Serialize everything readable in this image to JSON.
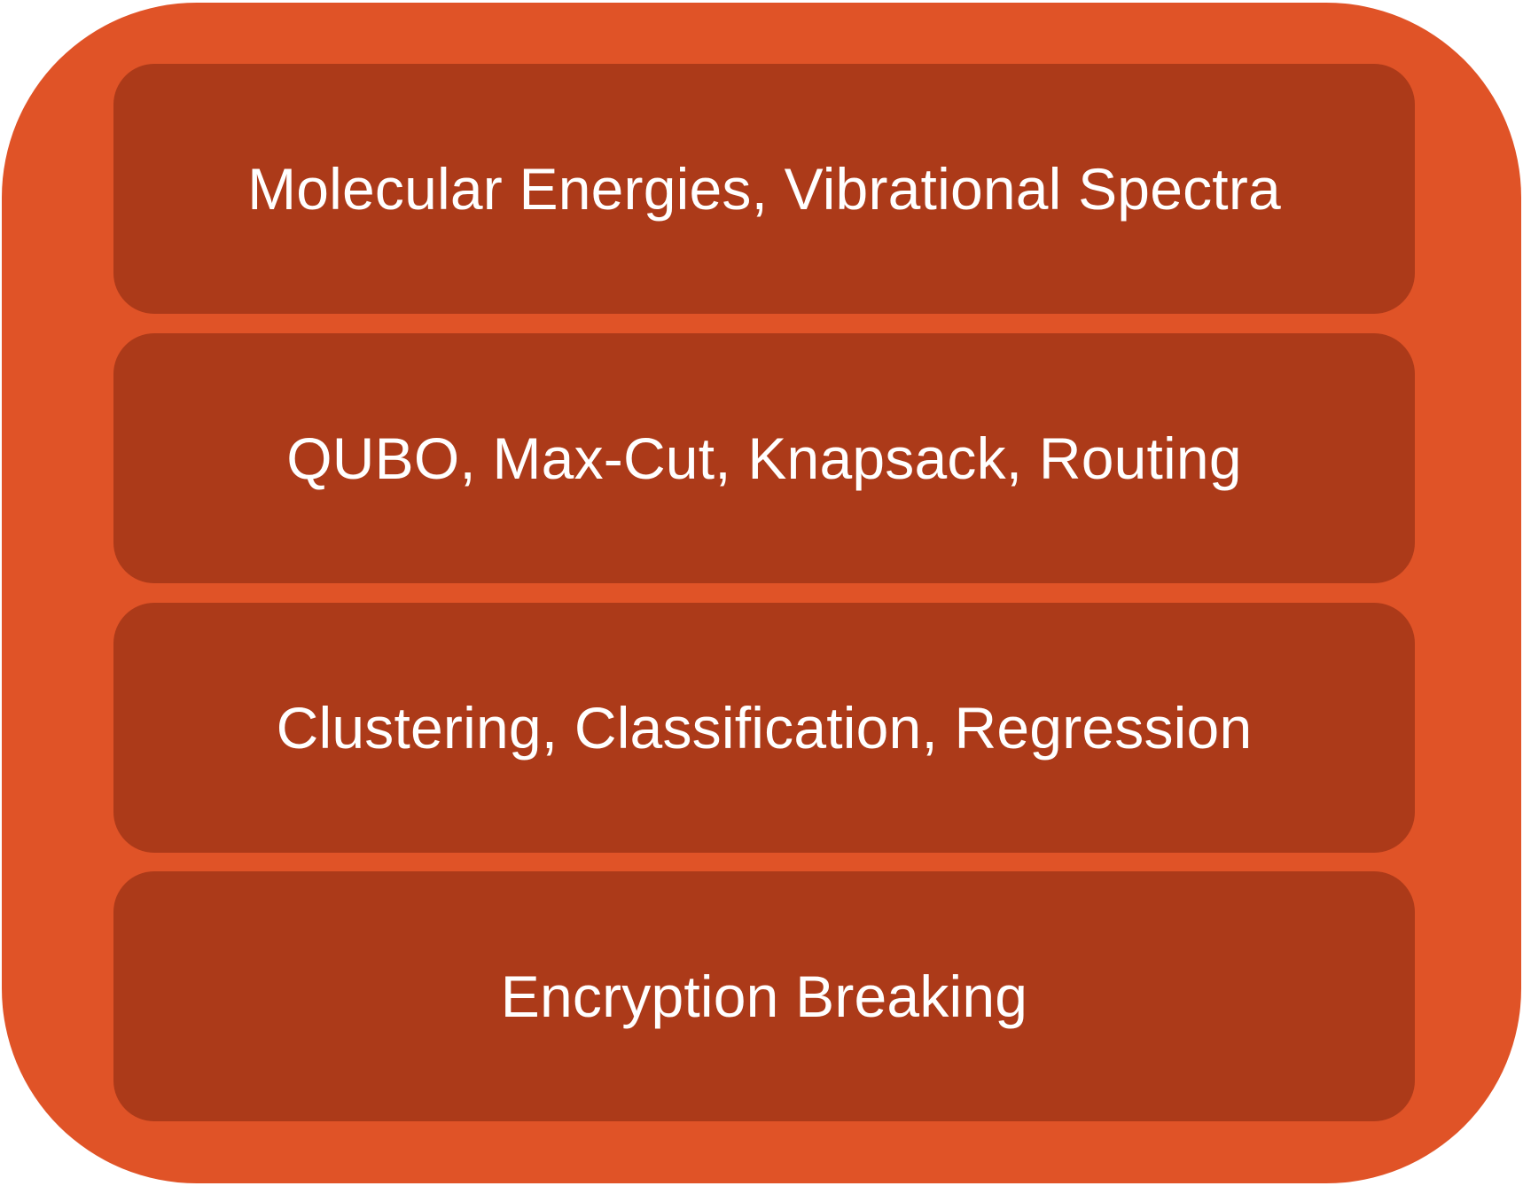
{
  "colors": {
    "outer_fill": "#E05327",
    "layer_fill": "#AC3A19",
    "text": "#FFFFFF"
  },
  "layers": [
    {
      "label": "Molecular Energies, Vibrational Spectra"
    },
    {
      "label": "QUBO, Max-Cut, Knapsack, Routing"
    },
    {
      "label": "Clustering, Classification, Regression"
    },
    {
      "label": "Encryption Breaking"
    }
  ]
}
